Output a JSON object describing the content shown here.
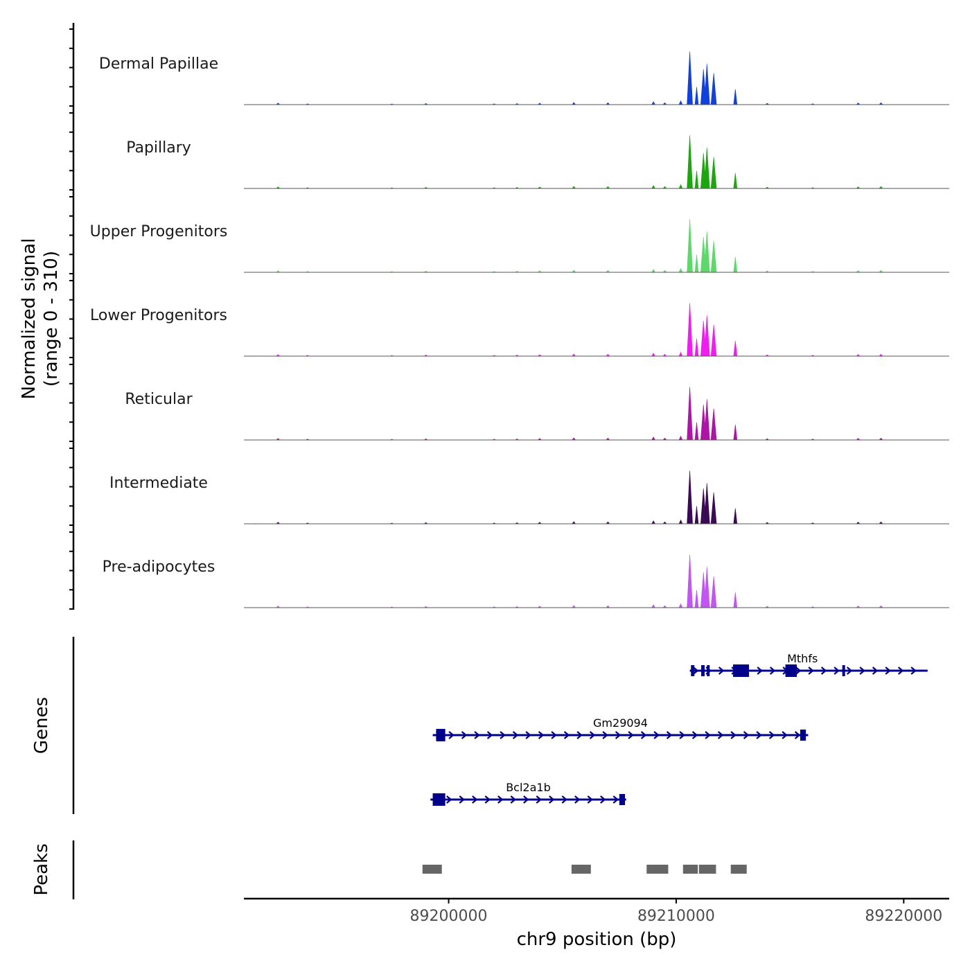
{
  "chart_data": {
    "type": "genome-coverage",
    "title": "",
    "chromosome": "chr9",
    "xlabel": "chr9 position (bp)",
    "xlim": [
      89191000,
      89222000
    ],
    "x_ticks": [
      89200000,
      89210000,
      89220000
    ],
    "x_tick_labels": [
      "89200000",
      "89210000",
      "89220000"
    ],
    "coverage": {
      "ylabel_line1": "Normalized signal",
      "ylabel_line2": "(range 0 - 310)",
      "ylim": [
        0,
        310
      ],
      "tracks": [
        {
          "name": "Dermal Papillae",
          "color": "#1240dd"
        },
        {
          "name": "Papillary",
          "color": "#1ea50f"
        },
        {
          "name": "Upper Progenitors",
          "color": "#5ed86b"
        },
        {
          "name": "Lower Progenitors",
          "color": "#ee1ef0"
        },
        {
          "name": "Reticular",
          "color": "#ad15a5"
        },
        {
          "name": "Intermediate",
          "color": "#3b0a55"
        },
        {
          "name": "Pre-adipocytes",
          "color": "#c156f2"
        }
      ],
      "peaks_profile": [
        {
          "x": 89191500,
          "y": 1
        },
        {
          "x": 89192500,
          "y": 9
        },
        {
          "x": 89193800,
          "y": 5
        },
        {
          "x": 89197500,
          "y": 4
        },
        {
          "x": 89199000,
          "y": 7
        },
        {
          "x": 89202000,
          "y": 5
        },
        {
          "x": 89203000,
          "y": 6
        },
        {
          "x": 89204000,
          "y": 8
        },
        {
          "x": 89205500,
          "y": 12
        },
        {
          "x": 89207000,
          "y": 10
        },
        {
          "x": 89209000,
          "y": 16
        },
        {
          "x": 89209500,
          "y": 10
        },
        {
          "x": 89210200,
          "y": 20
        },
        {
          "x": 89210600,
          "y": 300
        },
        {
          "x": 89210900,
          "y": 100
        },
        {
          "x": 89211200,
          "y": 200
        },
        {
          "x": 89211350,
          "y": 230
        },
        {
          "x": 89211650,
          "y": 170
        },
        {
          "x": 89212600,
          "y": 80
        },
        {
          "x": 89214000,
          "y": 8
        },
        {
          "x": 89216000,
          "y": 5
        },
        {
          "x": 89218000,
          "y": 9
        },
        {
          "x": 89219000,
          "y": 10
        }
      ]
    },
    "genes": {
      "ylabel": "Genes",
      "color": "#00008b",
      "items": [
        {
          "name": "Mthfs",
          "start": 89210600,
          "end": 89221050,
          "exons": [
            [
              89210650,
              89210800
            ],
            [
              89211100,
              89211250
            ],
            [
              89211350,
              89211450
            ],
            [
              89212500,
              89213200
            ],
            [
              89214800,
              89215300
            ],
            [
              89217300,
              89217400
            ]
          ]
        },
        {
          "name": "Gm29094",
          "start": 89199300,
          "end": 89215800,
          "exons": [
            [
              89199450,
              89199850
            ],
            [
              89215450,
              89215700
            ]
          ]
        },
        {
          "name": "Bcl2a1b",
          "start": 89199200,
          "end": 89207800,
          "exons": [
            [
              89199300,
              89199850
            ],
            [
              89207500,
              89207750
            ]
          ]
        }
      ]
    },
    "peaks": {
      "ylabel": "Peaks",
      "color": "#666666",
      "regions": [
        [
          89198850,
          89199700
        ],
        [
          89205400,
          89206250
        ],
        [
          89208700,
          89209650
        ],
        [
          89210300,
          89210950
        ],
        [
          89211000,
          89211750
        ],
        [
          89212400,
          89213100
        ]
      ]
    }
  }
}
